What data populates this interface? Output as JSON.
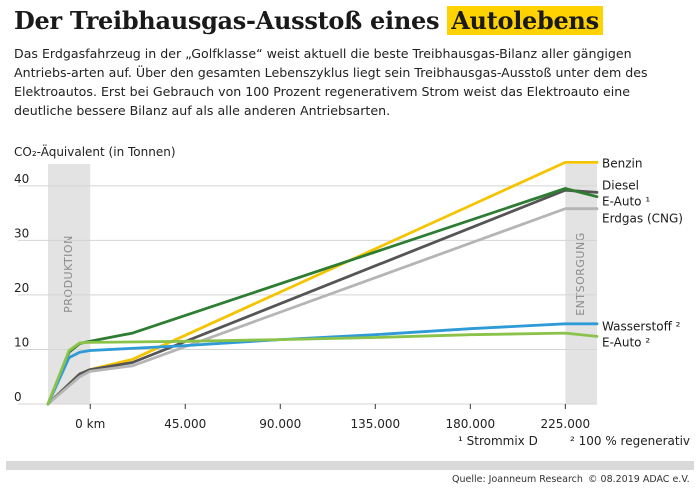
{
  "header": {
    "title_prefix": "Der Treibhausgas-Ausstoß eines ",
    "title_highlight": "Autolebens",
    "subtitle": "Das Erdgasfahrzeug in der „Golfklasse“ weist aktuell die beste Treibhausgas-Bilanz aller gängigen Antriebs-arten auf. Über den gesamten Lebenszyklus liegt sein Treibhausgas-Ausstoß unter dem des Elektroautos. Erst bei Gebrauch von 100 Prozent regenerativem Strom weist das Elektroauto eine deutliche bessere Bilanz auf als alle anderen Antriebsarten."
  },
  "footer": {
    "source": "Quelle: Joanneum Research",
    "copyright": "© 08.2019 ADAC e.V."
  },
  "chart_data": {
    "type": "line",
    "title": "Der Treibhausgas-Ausstoß eines Autolebens",
    "ylabel": "CO₂-Äquivalent (in Tonnen)",
    "xlabel": "",
    "x_unit": "km",
    "xlim": [
      -20000,
      240000
    ],
    "ylim": [
      0,
      44
    ],
    "yticks": [
      0,
      10,
      20,
      30,
      40
    ],
    "ytick_labels": [
      "0",
      "10",
      "20",
      "30",
      "40"
    ],
    "xticks": [
      0,
      45000,
      90000,
      135000,
      180000,
      225000
    ],
    "xtick_labels": [
      "0 km",
      "45.000",
      "90.000",
      "135.000",
      "180.000",
      "225.000"
    ],
    "phases": [
      {
        "label": "PRODUKTION",
        "x_from": -20000,
        "x_to": 0
      },
      {
        "label": "ENTSORGUNG",
        "x_from": 225000,
        "x_to": 240000
      }
    ],
    "footnotes": [
      "¹ Strommix D",
      "² 100 % regenerativ"
    ],
    "series": [
      {
        "name": "Benzin",
        "color": "#f5c400",
        "x": [
          -20000,
          -5000,
          0,
          20000,
          225000,
          240000
        ],
        "y": [
          0,
          5.5,
          6.3,
          8.2,
          44.3,
          44.3
        ]
      },
      {
        "name": "Diesel",
        "color": "#555555",
        "x": [
          -20000,
          -5000,
          0,
          20000,
          225000,
          240000
        ],
        "y": [
          0,
          5.5,
          6.3,
          7.6,
          39.2,
          38.8
        ]
      },
      {
        "name": "E-Auto ¹",
        "color": "#2e7d32",
        "x": [
          -20000,
          -10000,
          -5000,
          0,
          20000,
          225000,
          240000
        ],
        "y": [
          0,
          9.5,
          11.1,
          11.5,
          13.0,
          39.5,
          38.0
        ]
      },
      {
        "name": "Erdgas (CNG)",
        "color": "#b5b5b5",
        "x": [
          -20000,
          -5000,
          0,
          20000,
          225000,
          240000
        ],
        "y": [
          0,
          5.0,
          6.0,
          7.0,
          35.8,
          35.8
        ]
      },
      {
        "name": "Wasserstoff ²",
        "color": "#2e9ad6",
        "x": [
          -20000,
          -10000,
          -5000,
          0,
          45000,
          90000,
          135000,
          180000,
          225000,
          240000
        ],
        "y": [
          0,
          8.5,
          9.5,
          9.8,
          10.7,
          11.8,
          12.7,
          13.8,
          14.7,
          14.7
        ]
      },
      {
        "name": "E-Auto ²",
        "color": "#8bc34a",
        "x": [
          -20000,
          -10000,
          -5000,
          0,
          45000,
          90000,
          135000,
          180000,
          225000,
          240000
        ],
        "y": [
          0,
          9.8,
          11.2,
          11.3,
          11.5,
          11.8,
          12.2,
          12.7,
          13.0,
          12.4
        ]
      }
    ]
  }
}
